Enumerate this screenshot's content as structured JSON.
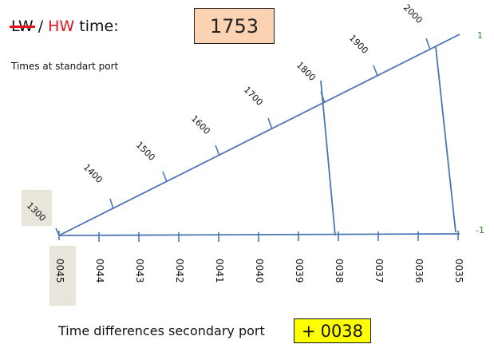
{
  "header": {
    "lw_label": "LW",
    "separator": "/",
    "hw_label": "HW",
    "time_label": "time:",
    "time_value": "1753",
    "subtitle": "Times at standart port"
  },
  "scale_right": {
    "top_label": "1",
    "bottom_label": "-1"
  },
  "upper_scale": {
    "labels": [
      "1300",
      "1400",
      "1500",
      "1600",
      "1700",
      "1800",
      "1900",
      "2000"
    ]
  },
  "lower_scale": {
    "labels": [
      "0045",
      "0044",
      "0043",
      "0042",
      "0041",
      "0040",
      "0039",
      "0038",
      "0037",
      "0036",
      "0035"
    ]
  },
  "footer": {
    "label": "Time differences secondary port",
    "sign": "+",
    "value": "0038"
  },
  "colors": {
    "line": "#4a76b4",
    "hw_red": "#e8121a",
    "time_box": "#fbd3b3",
    "diff_box": "#ffff00",
    "green": "#2a8a2a",
    "shade": "#e8e5da"
  }
}
